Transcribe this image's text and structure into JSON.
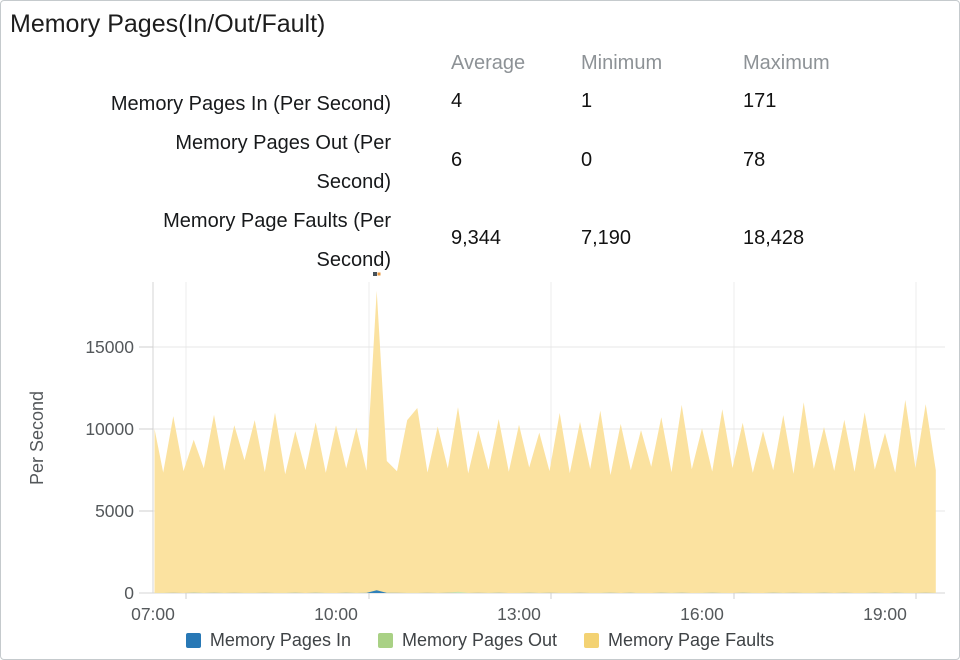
{
  "title": "Memory Pages(In/Out/Fault)",
  "stats": {
    "headers": [
      "Average",
      "Minimum",
      "Maximum"
    ],
    "rows": [
      {
        "label_lines": [
          "Memory Pages In (Per Second)",
          ""
        ],
        "average": "4",
        "minimum": "1",
        "maximum": "171"
      },
      {
        "label_lines": [
          "Memory Pages Out (Per",
          "Second)"
        ],
        "average": "6",
        "minimum": "0",
        "maximum": "78"
      },
      {
        "label_lines": [
          "Memory Page Faults (Per",
          "Second)"
        ],
        "average": "9,344",
        "minimum": "7,190",
        "maximum": "18,428"
      }
    ]
  },
  "legend": {
    "items": [
      {
        "label": "Memory Pages In",
        "color": "#2878b5"
      },
      {
        "label": "Memory Pages Out",
        "color": "#a9d185"
      },
      {
        "label": "Memory Page Faults",
        "color": "#f3d273"
      }
    ]
  },
  "chart_data": {
    "type": "area",
    "title": "",
    "xlabel": "",
    "ylabel": "Per Second",
    "x_start": "07:00",
    "x_end": "19:50",
    "x_interval_minutes": 10,
    "x_tick_labels": [
      "07:00",
      "10:00",
      "13:00",
      "16:00",
      "19:00"
    ],
    "y_ticks": [
      0,
      5000,
      10000,
      15000
    ],
    "ylim": [
      0,
      19000
    ],
    "grid": true,
    "legend_position": "bottom",
    "series": [
      {
        "name": "Memory Page Faults",
        "color": "#fbe2a0",
        "values": [
          10021,
          7350,
          10788,
          7430,
          9350,
          7612,
          10864,
          7470,
          10226,
          8100,
          10540,
          7380,
          11002,
          7240,
          9858,
          7495,
          10395,
          7330,
          10233,
          7601,
          10086,
          7455,
          18428,
          8050,
          7422,
          10545,
          11280,
          7350,
          10150,
          7600,
          11338,
          7290,
          9920,
          7515,
          10604,
          7388,
          10260,
          7650,
          9780,
          7435,
          10980,
          7310,
          10430,
          7560,
          11120,
          7190,
          10310,
          7480,
          9930,
          7700,
          10720,
          7365,
          11470,
          7540,
          10040,
          7410,
          11210,
          7620,
          10380,
          7330,
          9870,
          7490,
          10850,
          7260,
          11630,
          7580,
          10120,
          7445,
          10560,
          7395,
          11010,
          7530,
          9760,
          7340,
          11776,
          7620,
          11521,
          7481
        ]
      },
      {
        "name": "Memory Pages Out",
        "color": "#c9e5b4",
        "values": [
          5,
          8,
          3,
          0,
          12,
          6,
          4,
          9,
          2,
          7,
          5,
          0,
          8,
          4,
          6,
          3,
          9,
          5,
          2,
          7,
          4,
          8,
          15,
          6,
          3,
          9,
          5,
          2,
          7,
          4,
          78,
          6,
          3,
          8,
          5,
          0,
          9,
          4,
          6,
          2,
          7,
          5,
          3,
          8,
          4,
          6,
          0,
          9,
          5,
          3,
          7,
          4,
          8,
          2,
          6,
          5,
          9,
          0,
          4,
          7,
          3,
          6,
          8,
          2,
          5,
          4,
          7,
          0,
          6,
          3,
          8,
          5,
          2,
          7,
          4,
          6,
          3,
          5
        ]
      },
      {
        "name": "Memory Pages In",
        "color": "#2f80ba",
        "values": [
          3,
          2,
          4,
          1,
          5,
          3,
          4,
          2,
          6,
          3,
          2,
          4,
          3,
          1,
          5,
          2,
          4,
          3,
          2,
          5,
          3,
          4,
          171,
          8,
          4,
          2,
          3,
          5,
          2,
          4,
          3,
          2,
          5,
          3,
          4,
          2,
          1,
          4,
          3,
          5,
          2,
          3,
          4,
          2,
          3,
          5,
          1,
          4,
          2,
          3,
          6,
          2,
          4,
          3,
          2,
          5,
          3,
          2,
          4,
          1,
          3,
          5,
          2,
          4,
          3,
          2,
          5,
          3,
          4,
          2,
          3,
          5,
          2,
          4,
          3,
          2,
          4,
          3
        ]
      }
    ]
  }
}
